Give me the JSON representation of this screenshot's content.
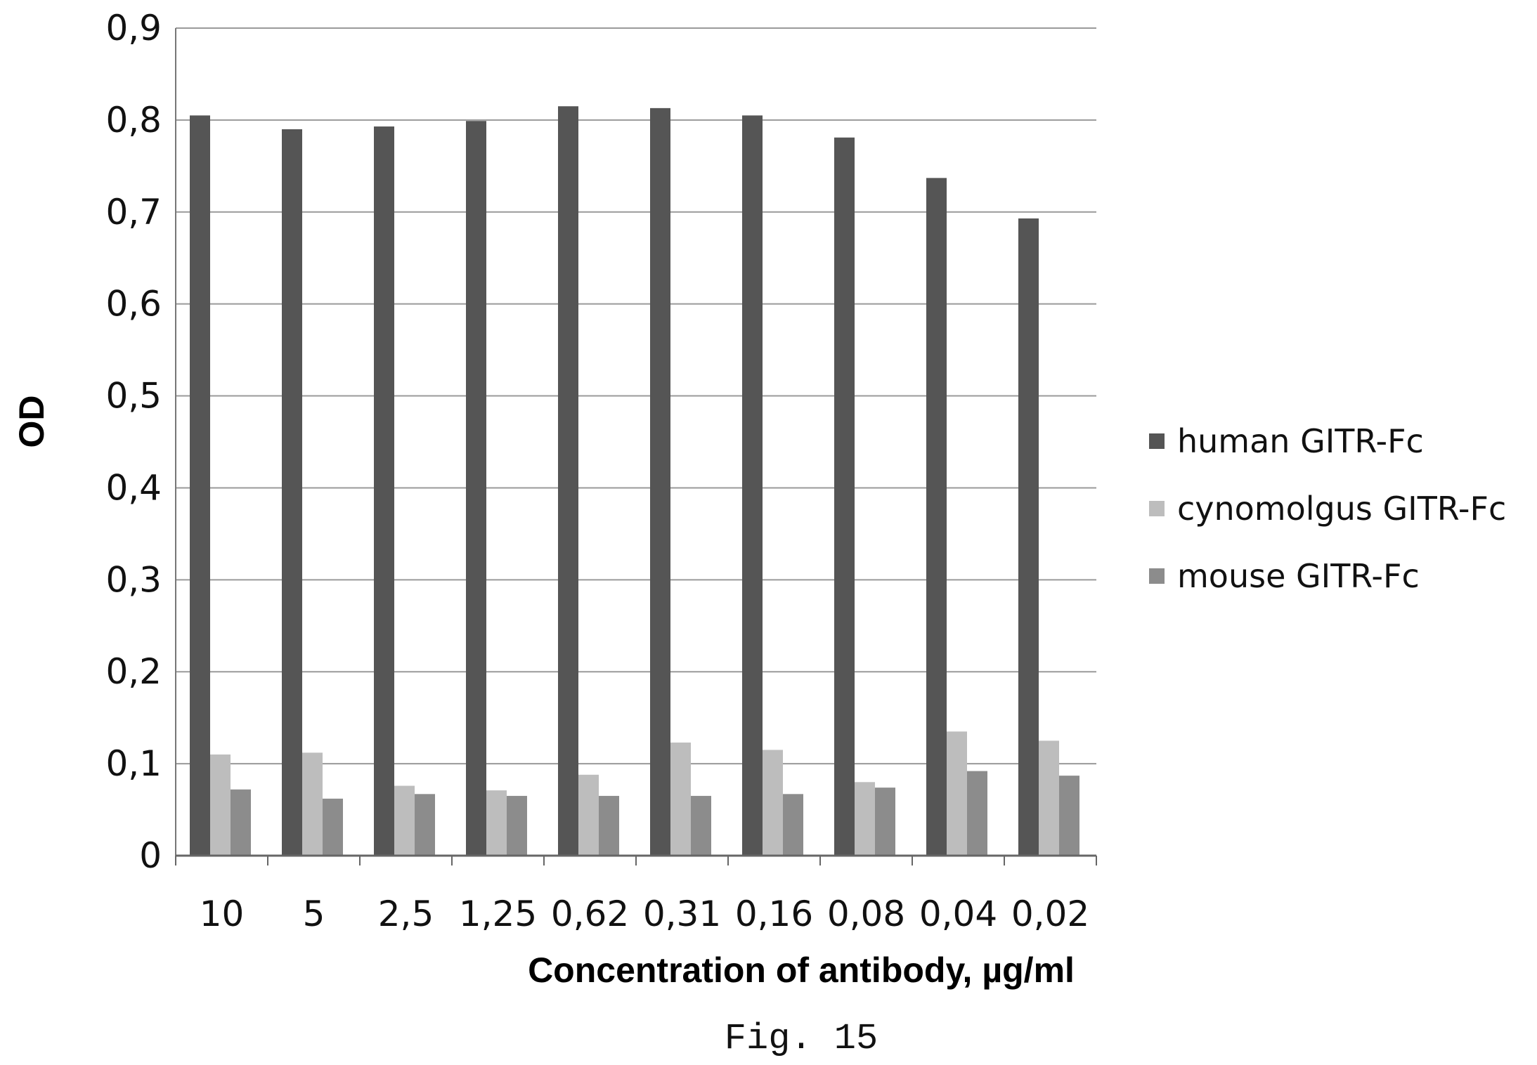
{
  "chart_data": {
    "type": "bar",
    "categories": [
      "10",
      "5",
      "2,5",
      "1,25",
      "0,62",
      "0,31",
      "0,16",
      "0,08",
      "0,04",
      "0,02"
    ],
    "series": [
      {
        "name": "human GITR-Fc",
        "color": "#555555",
        "values": [
          0.805,
          0.79,
          0.793,
          0.799,
          0.815,
          0.813,
          0.805,
          0.781,
          0.737,
          0.693
        ]
      },
      {
        "name": "cynomolgus GITR-Fc",
        "color": "#bdbdbd",
        "values": [
          0.11,
          0.112,
          0.076,
          0.071,
          0.088,
          0.123,
          0.115,
          0.08,
          0.135,
          0.125
        ]
      },
      {
        "name": "mouse GITR-Fc",
        "color": "#8c8c8c",
        "values": [
          0.072,
          0.062,
          0.067,
          0.065,
          0.065,
          0.065,
          0.067,
          0.074,
          0.092,
          0.087
        ]
      }
    ],
    "yticks": [
      "0",
      "0,1",
      "0,2",
      "0,3",
      "0,4",
      "0,5",
      "0,6",
      "0,7",
      "0,8",
      "0,9"
    ],
    "ylim": [
      0,
      0.9
    ],
    "ylabel": "OD",
    "xlabel": "Concentration of antibody, µg/ml",
    "grid": true,
    "legend_position": "right"
  },
  "figure_caption": "Fig. 15"
}
